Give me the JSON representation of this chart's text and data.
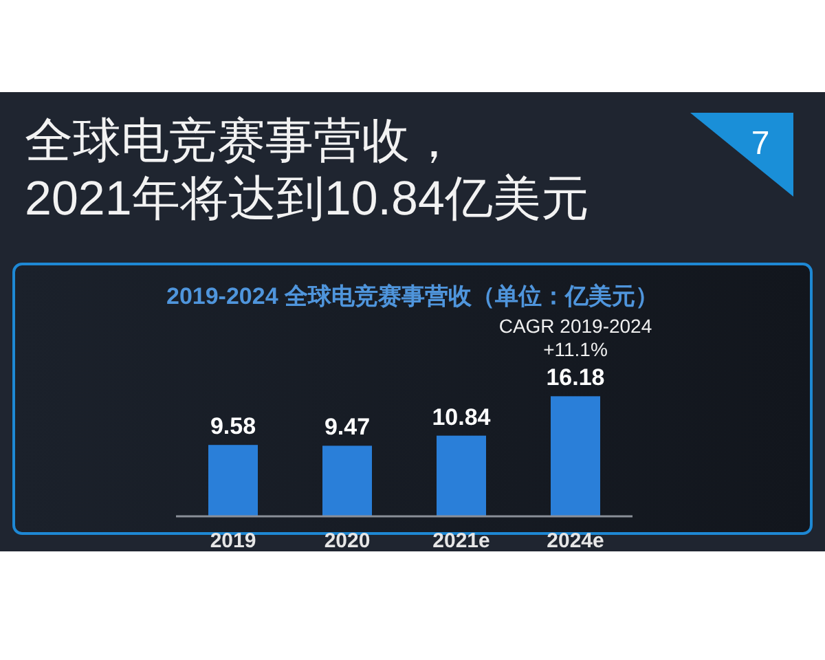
{
  "chart_data": {
    "type": "bar",
    "title": "全球电竞赛事营收，\n2021年将达到10.84亿美元",
    "subtitle": "2019-2024 全球电竞赛事营收（单位：亿美元）",
    "categories": [
      "2019",
      "2020",
      "2021e",
      "2024e"
    ],
    "values": [
      9.58,
      9.47,
      10.84,
      16.18
    ],
    "color": "#2a7fd9",
    "data_labels": true,
    "annotations": [
      {
        "text": "CAGR 2019-2024 +11.1%",
        "x": "2024e",
        "y": 16.18
      },
      "7"
    ]
  }
}
